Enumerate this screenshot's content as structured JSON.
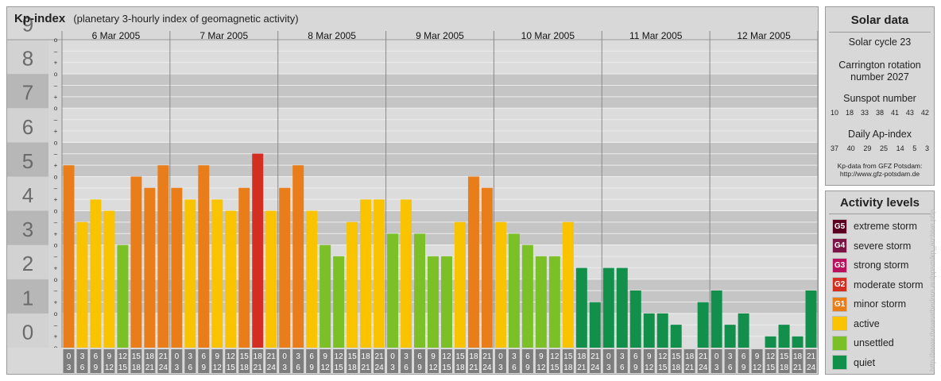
{
  "header": {
    "title": "Kp-index",
    "subtitle": "(planetary 3-hourly index of geomagnetic activity)"
  },
  "chart_data": {
    "type": "bar",
    "title": "Kp-index",
    "subtitle": "(planetary 3-hourly index of geomagnetic activity)",
    "ylim": [
      0,
      9
    ],
    "y_major_ticks": [
      "0",
      "1",
      "2",
      "3",
      "4",
      "5",
      "6",
      "7",
      "8",
      "9"
    ],
    "y_minor_ticks": [
      "o",
      "+",
      "–",
      "o"
    ],
    "days": [
      "6 Mar 2005",
      "7 Mar 2005",
      "8 Mar 2005",
      "9 Mar 2005",
      "10 Mar 2005",
      "11 Mar 2005",
      "12 Mar 2005"
    ],
    "interval_labels": [
      [
        "0",
        "3"
      ],
      [
        "3",
        "6"
      ],
      [
        "6",
        "9"
      ],
      [
        "9",
        "12"
      ],
      [
        "12",
        "15"
      ],
      [
        "15",
        "18"
      ],
      [
        "18",
        "21"
      ],
      [
        "21",
        "24"
      ]
    ],
    "values": [
      [
        5.33,
        3.67,
        4.33,
        4.0,
        3.0,
        5.0,
        4.67,
        5.33
      ],
      [
        4.67,
        4.33,
        5.33,
        4.33,
        4.0,
        4.67,
        5.67,
        4.0
      ],
      [
        4.67,
        5.33,
        4.0,
        3.0,
        2.67,
        3.67,
        4.33,
        4.33
      ],
      [
        3.33,
        4.33,
        3.33,
        2.67,
        2.67,
        3.67,
        5.0,
        4.67
      ],
      [
        3.67,
        3.33,
        3.0,
        2.67,
        2.67,
        3.67,
        2.33,
        1.33
      ],
      [
        2.33,
        2.33,
        1.67,
        1.0,
        1.0,
        0.67,
        0.0,
        1.33
      ],
      [
        1.67,
        0.67,
        1.0,
        0.0,
        0.33,
        0.67,
        0.33,
        1.67
      ]
    ],
    "colors": {
      "quiet": "#118f4b",
      "unsettled": "#7bc026",
      "active": "#f9c300",
      "minor": "#e87d1a",
      "moderate": "#d32e22"
    }
  },
  "solar": {
    "title": "Solar data",
    "cycle": "Solar cycle 23",
    "carrington": [
      "Carrington rotation",
      "number 2027"
    ],
    "sunspot_label": "Sunspot number",
    "sunspot_values": [
      "10",
      "18",
      "33",
      "38",
      "41",
      "43",
      "42"
    ],
    "ap_label": "Daily Ap-index",
    "ap_values": [
      "37",
      "40",
      "29",
      "25",
      "14",
      "5",
      "3"
    ],
    "source": [
      "Kp-data from GFZ Potsdam:",
      "http://www.gfz-potsdam.de"
    ]
  },
  "legend": {
    "title": "Activity levels",
    "items": [
      {
        "badge": "G5",
        "label": "extreme storm",
        "color": "#5c0022"
      },
      {
        "badge": "G4",
        "label": "severe storm",
        "color": "#7a1444"
      },
      {
        "badge": "G3",
        "label": "strong storm",
        "color": "#b8125e"
      },
      {
        "badge": "G2",
        "label": "moderate storm",
        "color": "#d32e22"
      },
      {
        "badge": "G1",
        "label": "minor storm",
        "color": "#e87d1a"
      },
      {
        "badge": "",
        "label": "active",
        "color": "#f9c300"
      },
      {
        "badge": "",
        "label": "unsettled",
        "color": "#7bc026"
      },
      {
        "badge": "",
        "label": "quiet",
        "color": "#118f4b"
      }
    ]
  },
  "watermark": "http://www.theweatherlore.eu/ppsm/kp_archive.php"
}
